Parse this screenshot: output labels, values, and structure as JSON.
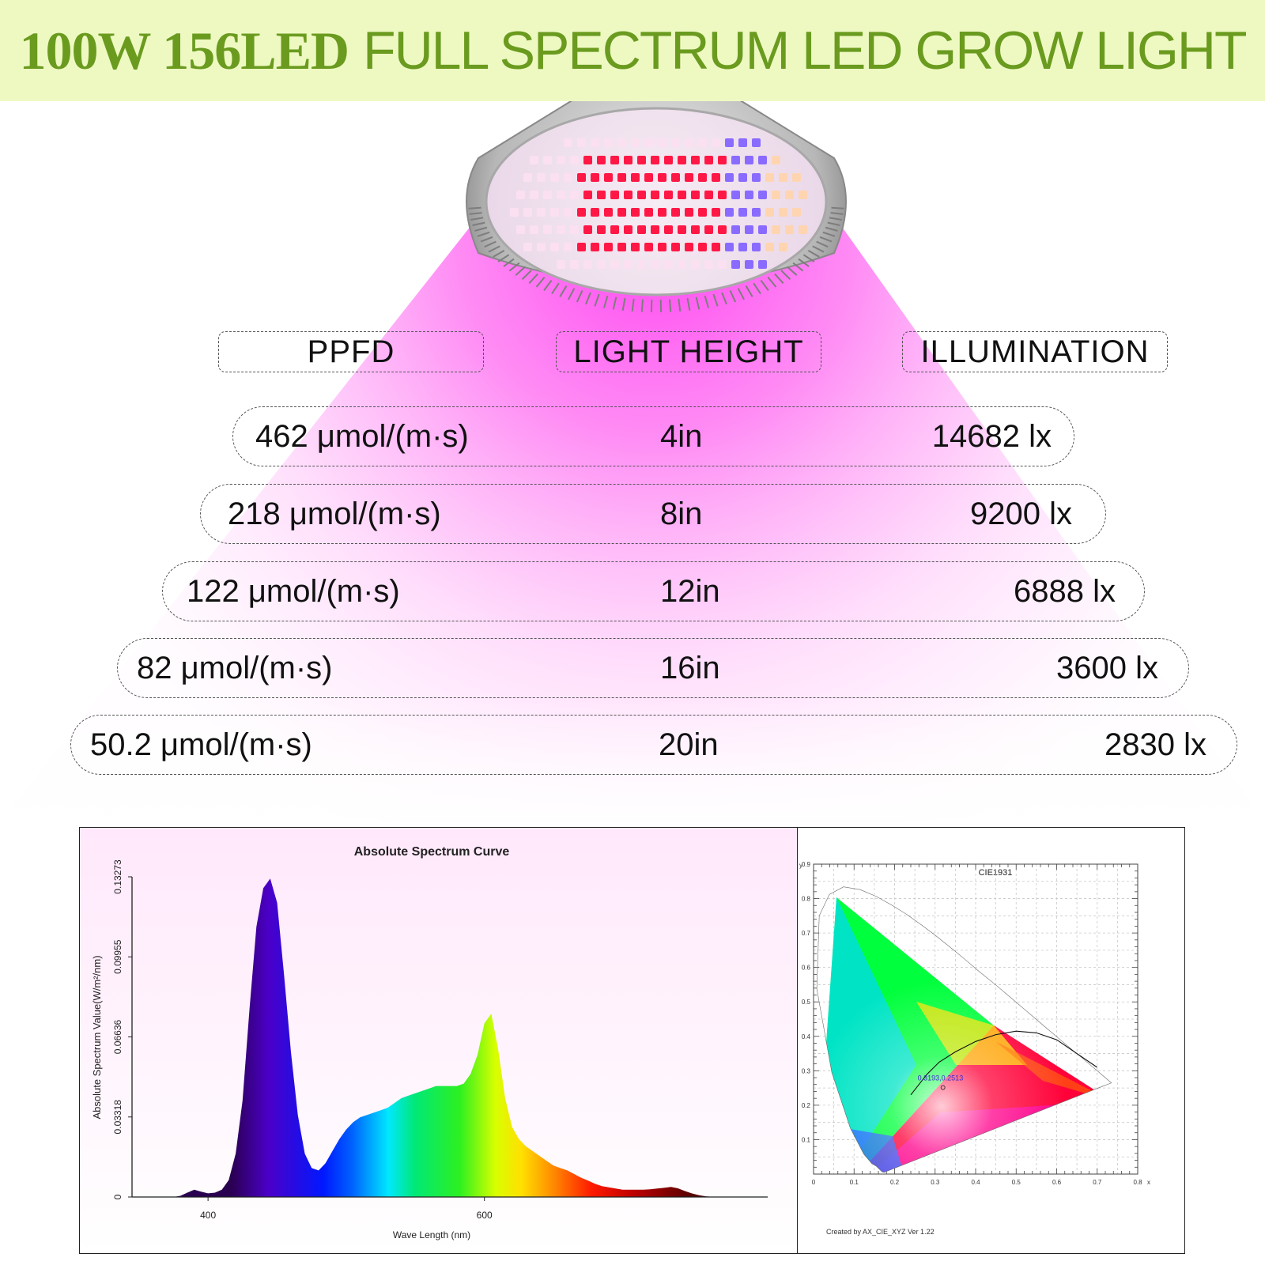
{
  "banner": {
    "title_bold": "100W 156LED",
    "title_rest": "FULL SPECTRUM LED GROW LIGHT",
    "bg": "#eef9c2",
    "text_color": "#6a9b1f"
  },
  "table": {
    "headers": [
      "PPFD",
      "LIGHT HEIGHT",
      "ILLUMINATION"
    ],
    "rows": [
      {
        "ppfd": "462 μmol/(m·s)",
        "height": "4in",
        "illumination": "14682 lx"
      },
      {
        "ppfd": "218 μmol/(m·s)",
        "height": "8in",
        "illumination": "9200 lx"
      },
      {
        "ppfd": "122 μmol/(m·s)",
        "height": "12in",
        "illumination": "6888 lx"
      },
      {
        "ppfd": "82 μmol/(m·s)",
        "height": "16in",
        "illumination": "3600 lx"
      },
      {
        "ppfd": "50.2 μmol/(m·s)",
        "height": "20in",
        "illumination": "2830 lx"
      }
    ]
  },
  "chart_data": [
    {
      "type": "area",
      "title": "Absolute Spectrum Curve",
      "xlabel": "Wave Length (nm)",
      "ylabel": "Absolute Spectrum Value(W/m²/nm)",
      "x_ticks": [
        "400",
        "600"
      ],
      "y_ticks": [
        "0",
        "0.03318",
        "0.06636",
        "0.09955",
        "0.13273"
      ],
      "xlim": [
        345,
        805
      ],
      "ylim": [
        0,
        0.13273
      ],
      "x": [
        375,
        380,
        385,
        390,
        395,
        400,
        405,
        410,
        415,
        420,
        425,
        430,
        435,
        440,
        445,
        450,
        455,
        460,
        465,
        470,
        475,
        480,
        485,
        490,
        495,
        500,
        505,
        510,
        515,
        520,
        525,
        530,
        535,
        540,
        545,
        550,
        555,
        560,
        565,
        570,
        575,
        580,
        585,
        590,
        595,
        600,
        605,
        610,
        615,
        620,
        625,
        630,
        635,
        640,
        645,
        650,
        655,
        660,
        665,
        670,
        675,
        680,
        685,
        690,
        695,
        700,
        705,
        710,
        715,
        720,
        725,
        730,
        735,
        740,
        745,
        750,
        755,
        760,
        765,
        770,
        775
      ],
      "y": [
        0,
        0.0005,
        0.0018,
        0.003,
        0.0022,
        0.0015,
        0.0018,
        0.003,
        0.007,
        0.018,
        0.04,
        0.078,
        0.112,
        0.128,
        0.132,
        0.122,
        0.092,
        0.06,
        0.034,
        0.018,
        0.012,
        0.011,
        0.014,
        0.019,
        0.024,
        0.028,
        0.031,
        0.033,
        0.034,
        0.035,
        0.036,
        0.037,
        0.039,
        0.041,
        0.042,
        0.043,
        0.044,
        0.045,
        0.046,
        0.046,
        0.046,
        0.046,
        0.047,
        0.051,
        0.059,
        0.072,
        0.076,
        0.061,
        0.041,
        0.029,
        0.024,
        0.021,
        0.019,
        0.017,
        0.015,
        0.013,
        0.012,
        0.011,
        0.0095,
        0.008,
        0.0068,
        0.0055,
        0.0045,
        0.004,
        0.0035,
        0.003,
        0.003,
        0.003,
        0.003,
        0.0032,
        0.0035,
        0.0038,
        0.0042,
        0.0036,
        0.0025,
        0.0015,
        0.0008,
        0.0003,
        0.0001,
        0,
        0
      ],
      "grid": false
    },
    {
      "type": "scatter",
      "title": "CIE1931",
      "xlabel": "x",
      "ylabel": "y",
      "x_ticks": [
        "0",
        "0.1",
        "0.2",
        "0.3",
        "0.4",
        "0.5",
        "0.6",
        "0.7",
        "0.8"
      ],
      "y_ticks": [
        "0.1",
        "0.2",
        "0.3",
        "0.4",
        "0.5",
        "0.6",
        "0.7",
        "0.8",
        "0.9"
      ],
      "xlim": [
        0,
        0.8
      ],
      "ylim": [
        0,
        0.9
      ],
      "grid": true,
      "points": [
        {
          "x": 0.3193,
          "y": 0.2513,
          "label": "0.3193,0.2513"
        }
      ],
      "planckian_locus": [
        [
          0.24,
          0.23
        ],
        [
          0.28,
          0.29
        ],
        [
          0.31,
          0.325
        ],
        [
          0.35,
          0.355
        ],
        [
          0.4,
          0.385
        ],
        [
          0.45,
          0.405
        ],
        [
          0.5,
          0.415
        ],
        [
          0.55,
          0.41
        ],
        [
          0.6,
          0.39
        ],
        [
          0.65,
          0.35
        ],
        [
          0.7,
          0.31
        ]
      ],
      "locus": [
        [
          0.174,
          0.005
        ],
        [
          0.17,
          0.006
        ],
        [
          0.165,
          0.011
        ],
        [
          0.155,
          0.023
        ],
        [
          0.144,
          0.03
        ],
        [
          0.124,
          0.058
        ],
        [
          0.091,
          0.133
        ],
        [
          0.045,
          0.295
        ],
        [
          0.008,
          0.538
        ],
        [
          0.014,
          0.75
        ],
        [
          0.039,
          0.812
        ],
        [
          0.074,
          0.834
        ],
        [
          0.115,
          0.826
        ],
        [
          0.155,
          0.806
        ],
        [
          0.193,
          0.781
        ],
        [
          0.23,
          0.754
        ],
        [
          0.266,
          0.724
        ],
        [
          0.302,
          0.692
        ],
        [
          0.337,
          0.659
        ],
        [
          0.373,
          0.624
        ],
        [
          0.408,
          0.589
        ],
        [
          0.444,
          0.555
        ],
        [
          0.479,
          0.52
        ],
        [
          0.513,
          0.486
        ],
        [
          0.547,
          0.452
        ],
        [
          0.579,
          0.42
        ],
        [
          0.608,
          0.391
        ],
        [
          0.634,
          0.365
        ],
        [
          0.658,
          0.342
        ],
        [
          0.677,
          0.323
        ],
        [
          0.692,
          0.308
        ],
        [
          0.735,
          0.265
        ]
      ],
      "footer": "Created by AX_CIE_XYZ Ver 1.22"
    }
  ]
}
